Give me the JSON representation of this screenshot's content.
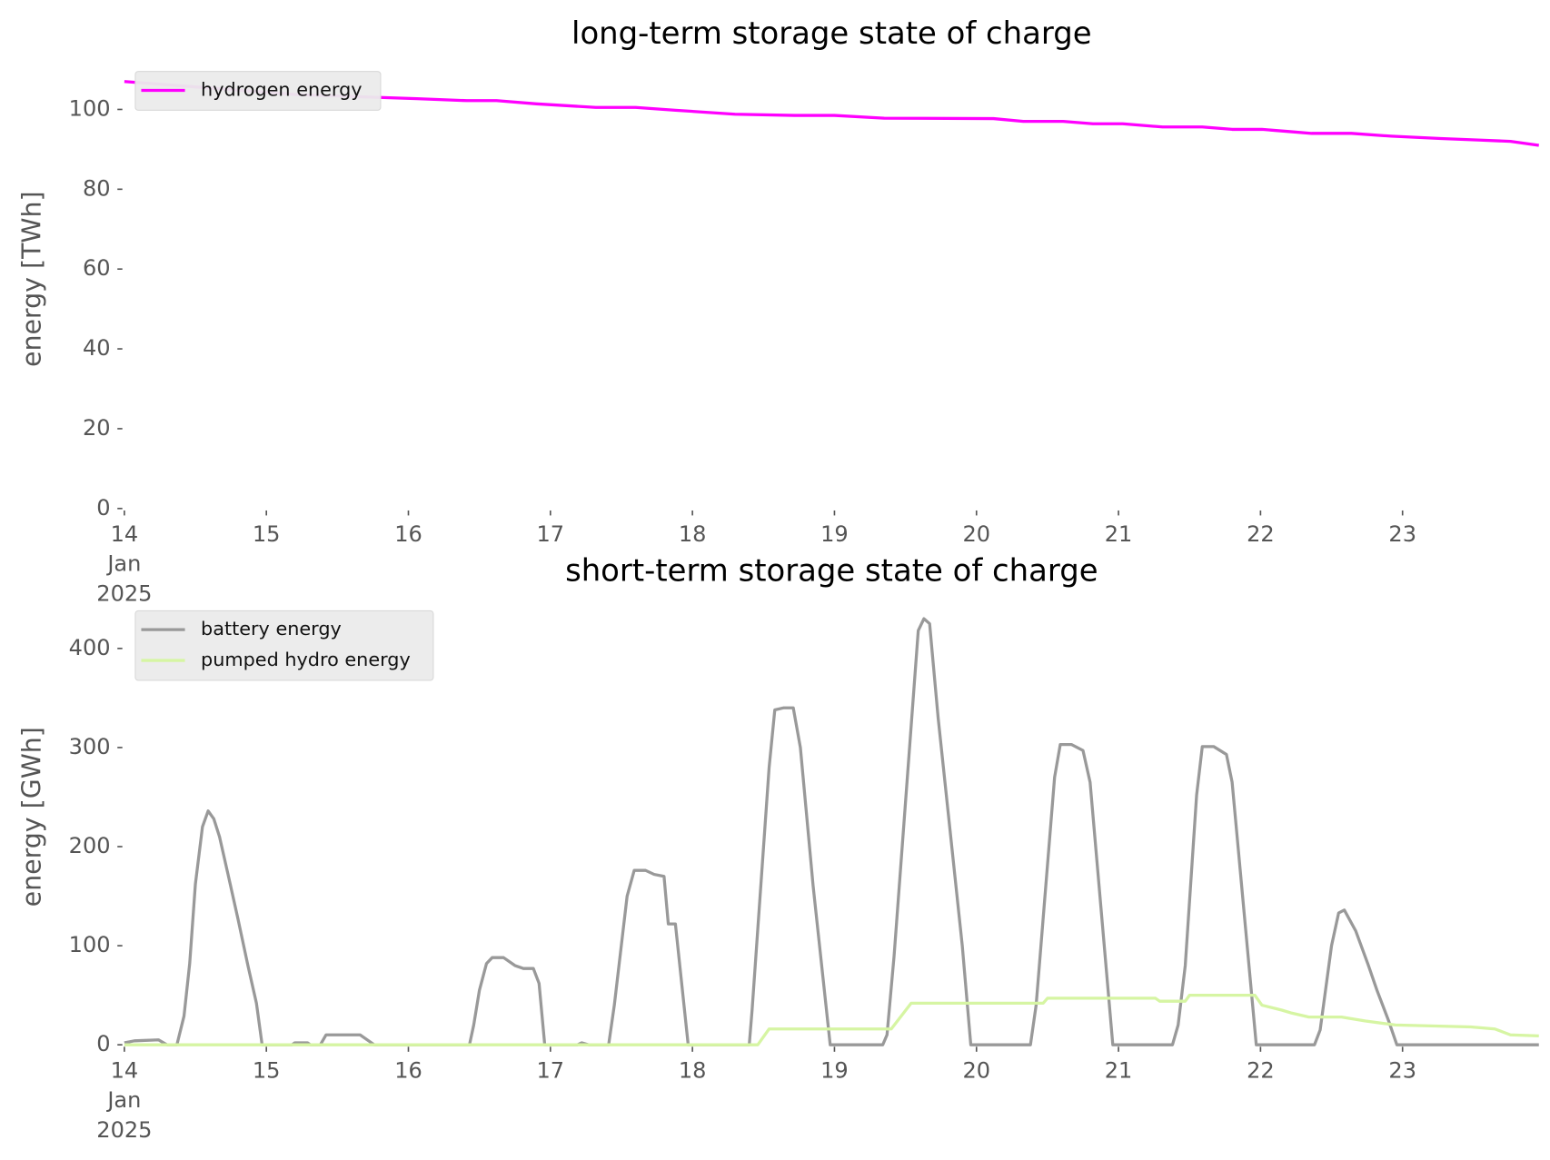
{
  "chart_data": [
    {
      "type": "line",
      "title": "long-term storage state of charge",
      "ylabel": "energy [TWh]",
      "xlim": [
        14,
        23.96
      ],
      "ylim": [
        0,
        110
      ],
      "xticks": [
        {
          "value": 14,
          "label": "14\nJan\n2025"
        },
        15,
        16,
        17,
        18,
        19,
        20,
        21,
        22,
        23
      ],
      "yticks": [
        0,
        20,
        40,
        60,
        80,
        100
      ],
      "legend": "upper left",
      "grid": false,
      "series": [
        {
          "name": "hydrogen energy",
          "color": "#ff00ff",
          "x": [
            14.0,
            15.22,
            16.06,
            16.41,
            16.62,
            16.9,
            17.32,
            17.6,
            17.88,
            18.3,
            18.72,
            19.0,
            19.35,
            20.12,
            20.33,
            20.61,
            20.82,
            21.03,
            21.31,
            21.59,
            21.8,
            22.01,
            22.22,
            22.36,
            22.64,
            22.92,
            23.27,
            23.55,
            23.76,
            23.96
          ],
          "values": [
            107,
            103.7,
            102.7,
            102.2,
            102.2,
            101.4,
            100.5,
            100.5,
            99.8,
            98.8,
            98.5,
            98.5,
            97.8,
            97.7,
            97.0,
            97.0,
            96.4,
            96.4,
            95.6,
            95.6,
            95.0,
            95.0,
            94.4,
            94.0,
            94.0,
            93.3,
            92.7,
            92.3,
            92.0,
            91.0
          ]
        }
      ]
    },
    {
      "type": "line",
      "title": "short-term storage state of charge",
      "ylabel": "energy [GWh]",
      "xlim": [
        14,
        23.96
      ],
      "ylim": [
        0,
        440
      ],
      "xticks": [
        {
          "value": 14,
          "label": "14\nJan\n2025"
        },
        15,
        16,
        17,
        18,
        19,
        20,
        21,
        22,
        23
      ],
      "yticks": [
        0,
        100,
        200,
        300,
        400
      ],
      "legend": "upper left",
      "grid": false,
      "series": [
        {
          "name": "battery energy",
          "color": "#999999",
          "x": [
            14.0,
            14.07,
            14.24,
            14.3,
            14.37,
            14.42,
            14.46,
            14.5,
            14.55,
            14.59,
            14.63,
            14.67,
            14.73,
            14.8,
            14.87,
            14.93,
            14.97,
            15.18,
            15.2,
            15.29,
            15.31,
            15.38,
            15.42,
            15.66,
            15.76,
            16.43,
            16.46,
            16.5,
            16.55,
            16.59,
            16.67,
            16.75,
            16.81,
            16.88,
            16.92,
            16.96,
            17.19,
            17.22,
            17.27,
            17.41,
            17.45,
            17.54,
            17.59,
            17.67,
            17.73,
            17.8,
            17.83,
            17.88,
            17.97,
            18.4,
            18.42,
            18.54,
            18.58,
            18.64,
            18.71,
            18.76,
            18.85,
            18.97,
            19.34,
            19.37,
            19.42,
            19.59,
            19.63,
            19.67,
            19.73,
            19.9,
            19.96,
            20.38,
            20.42,
            20.55,
            20.59,
            20.67,
            20.75,
            20.8,
            20.96,
            21.38,
            21.42,
            21.47,
            21.55,
            21.59,
            21.67,
            21.76,
            21.8,
            21.97,
            22.38,
            22.42,
            22.5,
            22.55,
            22.59,
            22.67,
            22.76,
            22.82,
            22.9,
            22.96,
            23.96
          ],
          "values": [
            2,
            4,
            5,
            0,
            0,
            29,
            82,
            162,
            220,
            236,
            228,
            210,
            172,
            127,
            80,
            42,
            0,
            0,
            2,
            2,
            0,
            0,
            10,
            10,
            0,
            0,
            20,
            55,
            82,
            88,
            88,
            80,
            77,
            77,
            62,
            0,
            0,
            2,
            0,
            0,
            40,
            150,
            176,
            176,
            172,
            170,
            122,
            122,
            0,
            0,
            35,
            280,
            338,
            340,
            340,
            300,
            160,
            0,
            0,
            10,
            90,
            418,
            430,
            425,
            330,
            100,
            0,
            0,
            40,
            270,
            303,
            303,
            297,
            265,
            0,
            0,
            20,
            80,
            252,
            301,
            301,
            293,
            265,
            0,
            0,
            15,
            100,
            133,
            136,
            115,
            80,
            55,
            25,
            0,
            0
          ]
        },
        {
          "name": "pumped hydro energy",
          "color": "#d6f5a3",
          "x": [
            14.0,
            18.46,
            18.54,
            19.4,
            19.54,
            20.47,
            20.5,
            21.26,
            21.29,
            21.47,
            21.5,
            21.96,
            22.01,
            22.15,
            22.22,
            22.34,
            22.57,
            22.74,
            22.95,
            23.48,
            23.65,
            23.76,
            23.96
          ],
          "values": [
            0,
            0,
            16,
            16,
            42,
            42,
            47,
            47,
            44,
            44,
            50,
            50,
            40,
            35,
            32,
            28,
            28,
            24,
            20,
            18,
            16,
            10,
            9
          ]
        }
      ]
    }
  ]
}
